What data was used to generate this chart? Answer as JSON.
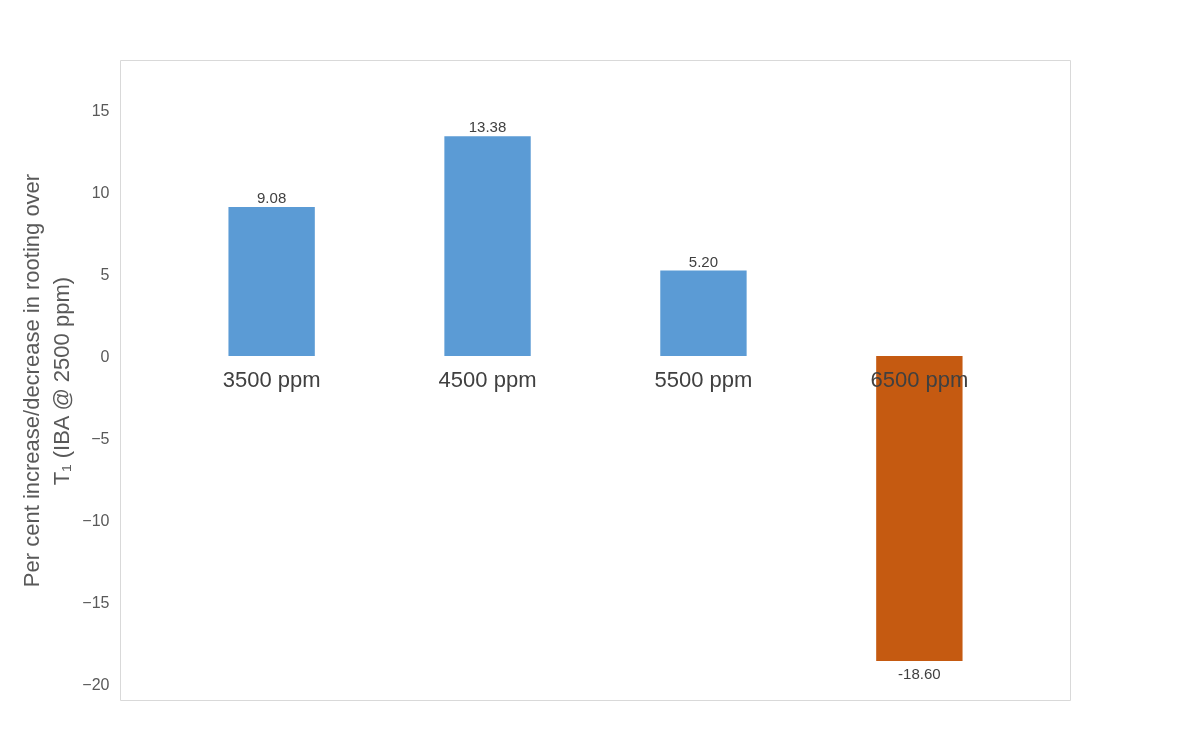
{
  "chart_data": {
    "type": "bar",
    "ylabel": "Per cent increase/decrease in rooting over T₁ (IBA @ 2500 ppm)",
    "categories": [
      "3500 ppm",
      "4500 ppm",
      "5500 ppm",
      "6500 ppm"
    ],
    "values": [
      9.08,
      13.38,
      5.2,
      -18.6
    ],
    "colors": [
      "#5b9bd5",
      "#5b9bd5",
      "#5b9bd5",
      "#c55a11"
    ],
    "value_labels": [
      "9.08",
      "13.38",
      "5.20",
      "-18.60"
    ],
    "ylim": [
      -21,
      18
    ],
    "yticks": [
      -20,
      -15,
      -10,
      -5,
      0,
      5,
      10,
      15
    ],
    "grid": false
  }
}
